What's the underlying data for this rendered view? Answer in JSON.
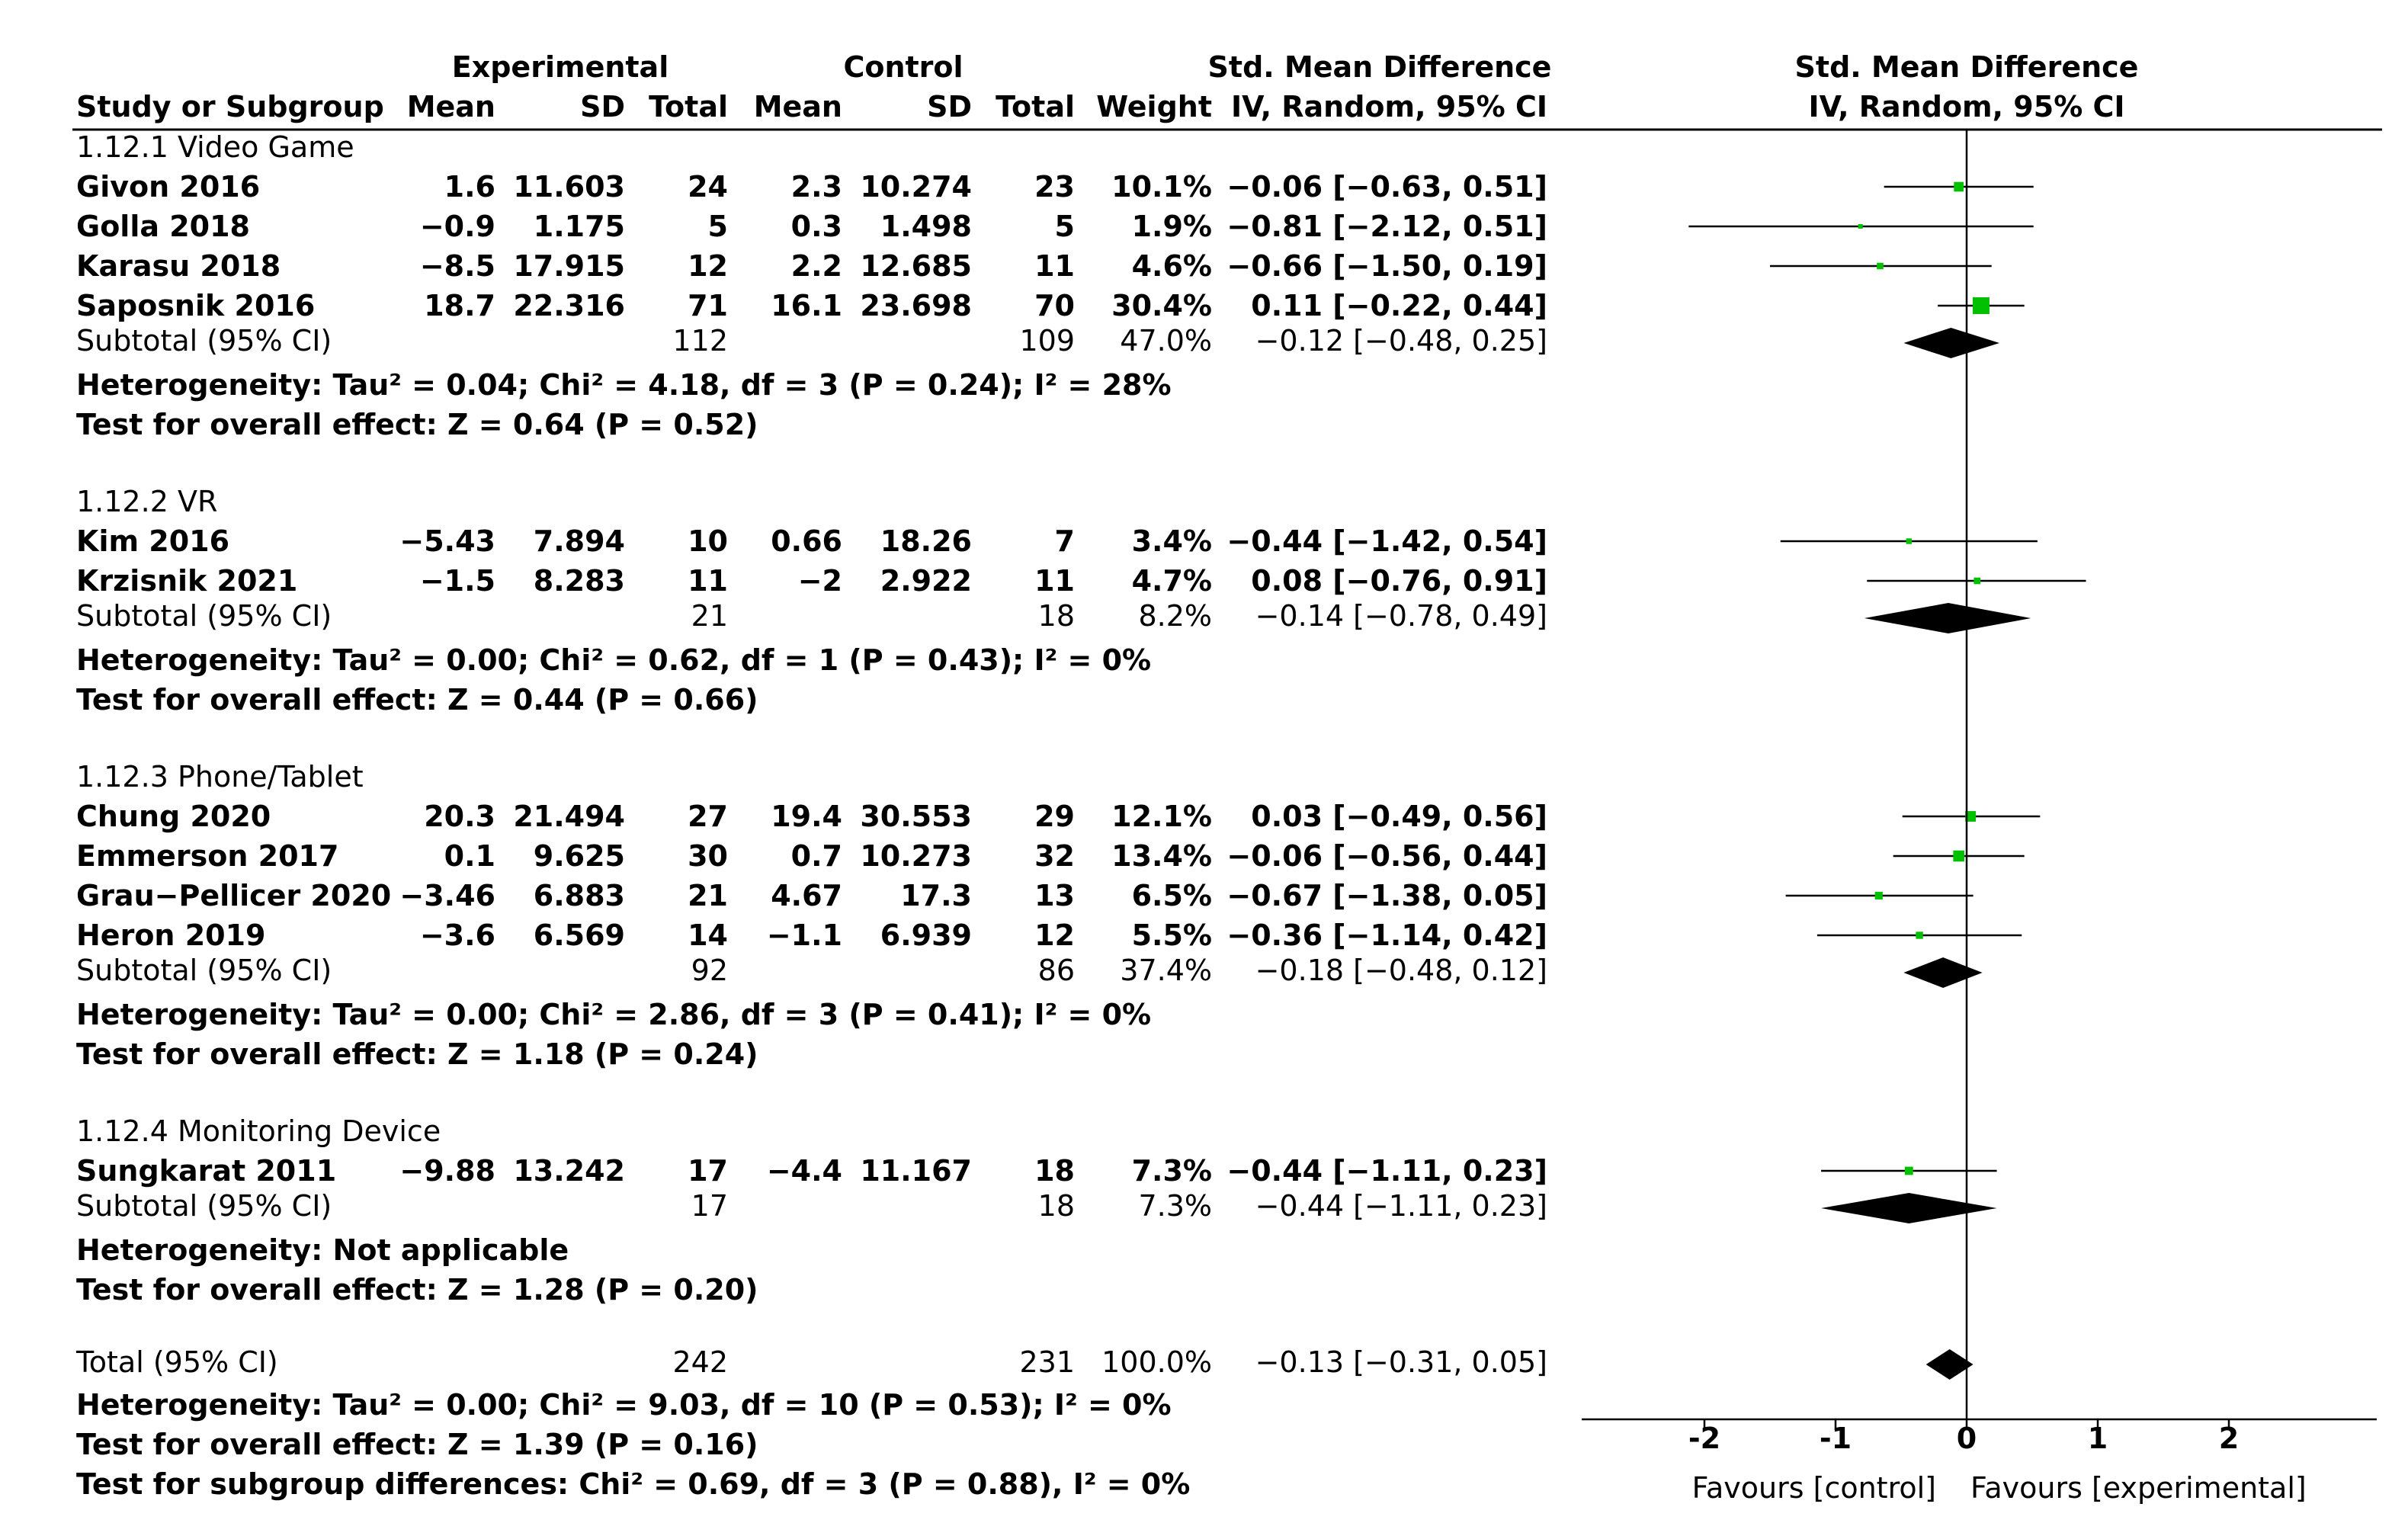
{
  "chart_data": {
    "type": "forest",
    "headers": {
      "study_col": "Study or Subgroup",
      "experimental": "Experimental",
      "control": "Control",
      "mean": "Mean",
      "sd": "SD",
      "total": "Total",
      "weight": "Weight",
      "smd_title": "Std. Mean Difference",
      "smd_method": "IV, Random, 95% CI"
    },
    "subgroups": [
      {
        "label": "1.12.1 Video Game",
        "studies": [
          {
            "name": "Givon 2016",
            "e_mean": "1.6",
            "e_sd": "11.603",
            "e_total": "24",
            "c_mean": "2.3",
            "c_sd": "10.274",
            "c_total": "23",
            "weight": "10.1%",
            "ci": "−0.06 [−0.63, 0.51]",
            "est": -0.06,
            "lo": -0.63,
            "hi": 0.51,
            "w": 10.1
          },
          {
            "name": "Golla 2018",
            "e_mean": "−0.9",
            "e_sd": "1.175",
            "e_total": "5",
            "c_mean": "0.3",
            "c_sd": "1.498",
            "c_total": "5",
            "weight": "1.9%",
            "ci": "−0.81 [−2.12, 0.51]",
            "est": -0.81,
            "lo": -2.12,
            "hi": 0.51,
            "w": 1.9
          },
          {
            "name": "Karasu 2018",
            "e_mean": "−8.5",
            "e_sd": "17.915",
            "e_total": "12",
            "c_mean": "2.2",
            "c_sd": "12.685",
            "c_total": "11",
            "weight": "4.6%",
            "ci": "−0.66 [−1.50, 0.19]",
            "est": -0.66,
            "lo": -1.5,
            "hi": 0.19,
            "w": 4.6
          },
          {
            "name": "Saposnik 2016",
            "e_mean": "18.7",
            "e_sd": "22.316",
            "e_total": "71",
            "c_mean": "16.1",
            "c_sd": "23.698",
            "c_total": "70",
            "weight": "30.4%",
            "ci": "0.11 [−0.22, 0.44]",
            "est": 0.11,
            "lo": -0.22,
            "hi": 0.44,
            "w": 30.4
          }
        ],
        "subtotal": {
          "label": "Subtotal (95% CI)",
          "e_total": "112",
          "c_total": "109",
          "weight": "47.0%",
          "ci": "−0.12 [−0.48, 0.25]",
          "est": -0.12,
          "lo": -0.48,
          "hi": 0.25
        },
        "heterogeneity": "Heterogeneity: Tau² = 0.04; Chi² = 4.18, df = 3 (P = 0.24); I² = 28%",
        "overall": "Test for overall effect: Z = 0.64 (P = 0.52)"
      },
      {
        "label": "1.12.2 VR",
        "studies": [
          {
            "name": "Kim 2016",
            "e_mean": "−5.43",
            "e_sd": "7.894",
            "e_total": "10",
            "c_mean": "0.66",
            "c_sd": "18.26",
            "c_total": "7",
            "weight": "3.4%",
            "ci": "−0.44 [−1.42, 0.54]",
            "est": -0.44,
            "lo": -1.42,
            "hi": 0.54,
            "w": 3.4
          },
          {
            "name": "Krzisnik 2021",
            "e_mean": "−1.5",
            "e_sd": "8.283",
            "e_total": "11",
            "c_mean": "−2",
            "c_sd": "2.922",
            "c_total": "11",
            "weight": "4.7%",
            "ci": "0.08 [−0.76, 0.91]",
            "est": 0.08,
            "lo": -0.76,
            "hi": 0.91,
            "w": 4.7
          }
        ],
        "subtotal": {
          "label": "Subtotal (95% CI)",
          "e_total": "21",
          "c_total": "18",
          "weight": "8.2%",
          "ci": "−0.14 [−0.78, 0.49]",
          "est": -0.14,
          "lo": -0.78,
          "hi": 0.49
        },
        "heterogeneity": "Heterogeneity: Tau² = 0.00; Chi² = 0.62, df = 1 (P = 0.43); I² = 0%",
        "overall": "Test for overall effect: Z = 0.44 (P = 0.66)"
      },
      {
        "label": "1.12.3 Phone/Tablet",
        "studies": [
          {
            "name": "Chung 2020",
            "e_mean": "20.3",
            "e_sd": "21.494",
            "e_total": "27",
            "c_mean": "19.4",
            "c_sd": "30.553",
            "c_total": "29",
            "weight": "12.1%",
            "ci": "0.03 [−0.49, 0.56]",
            "est": 0.03,
            "lo": -0.49,
            "hi": 0.56,
            "w": 12.1
          },
          {
            "name": "Emmerson 2017",
            "e_mean": "0.1",
            "e_sd": "9.625",
            "e_total": "30",
            "c_mean": "0.7",
            "c_sd": "10.273",
            "c_total": "32",
            "weight": "13.4%",
            "ci": "−0.06 [−0.56, 0.44]",
            "est": -0.06,
            "lo": -0.56,
            "hi": 0.44,
            "w": 13.4
          },
          {
            "name": "Grau−Pellicer 2020",
            "e_mean": "−3.46",
            "e_sd": "6.883",
            "e_total": "21",
            "c_mean": "4.67",
            "c_sd": "17.3",
            "c_total": "13",
            "weight": "6.5%",
            "ci": "−0.67 [−1.38, 0.05]",
            "est": -0.67,
            "lo": -1.38,
            "hi": 0.05,
            "w": 6.5
          },
          {
            "name": "Heron 2019",
            "e_mean": "−3.6",
            "e_sd": "6.569",
            "e_total": "14",
            "c_mean": "−1.1",
            "c_sd": "6.939",
            "c_total": "12",
            "weight": "5.5%",
            "ci": "−0.36 [−1.14, 0.42]",
            "est": -0.36,
            "lo": -1.14,
            "hi": 0.42,
            "w": 5.5
          }
        ],
        "subtotal": {
          "label": "Subtotal (95% CI)",
          "e_total": "92",
          "c_total": "86",
          "weight": "37.4%",
          "ci": "−0.18 [−0.48, 0.12]",
          "est": -0.18,
          "lo": -0.48,
          "hi": 0.12
        },
        "heterogeneity": "Heterogeneity: Tau² = 0.00; Chi² = 2.86, df = 3 (P = 0.41); I² = 0%",
        "overall": "Test for overall effect: Z = 1.18 (P = 0.24)"
      },
      {
        "label": "1.12.4 Monitoring Device",
        "studies": [
          {
            "name": "Sungkarat 2011",
            "e_mean": "−9.88",
            "e_sd": "13.242",
            "e_total": "17",
            "c_mean": "−4.4",
            "c_sd": "11.167",
            "c_total": "18",
            "weight": "7.3%",
            "ci": "−0.44 [−1.11, 0.23]",
            "est": -0.44,
            "lo": -1.11,
            "hi": 0.23,
            "w": 7.3
          }
        ],
        "subtotal": {
          "label": "Subtotal (95% CI)",
          "e_total": "17",
          "c_total": "18",
          "weight": "7.3%",
          "ci": "−0.44 [−1.11, 0.23]",
          "est": -0.44,
          "lo": -1.11,
          "hi": 0.23
        },
        "heterogeneity": "Heterogeneity: Not applicable",
        "overall": "Test for overall effect: Z = 1.28 (P = 0.20)"
      }
    ],
    "total": {
      "label": "Total (95% CI)",
      "e_total": "242",
      "c_total": "231",
      "weight": "100.0%",
      "ci": "−0.13 [−0.31, 0.05]",
      "est": -0.13,
      "lo": -0.31,
      "hi": 0.05
    },
    "footer": [
      "Heterogeneity: Tau² = 0.00; Chi² = 9.03, df = 10 (P = 0.53); I² = 0%",
      "Test for overall effect: Z = 1.39 (P = 0.16)",
      "Test for subgroup differences: Chi² = 0.69, df = 3 (P = 0.88), I² = 0%"
    ],
    "axis": {
      "xlim": [
        -3,
        3
      ],
      "ticks": [
        -2,
        -1,
        0,
        1,
        2
      ],
      "tick_labels": [
        "-2",
        "-1",
        "0",
        "1",
        "2"
      ]
    },
    "favours_left": "Favours [control]",
    "favours_right": "Favours [experimental]",
    "colors": {
      "marker": "#00c000",
      "diamond": "#000000",
      "line": "#000000"
    }
  }
}
